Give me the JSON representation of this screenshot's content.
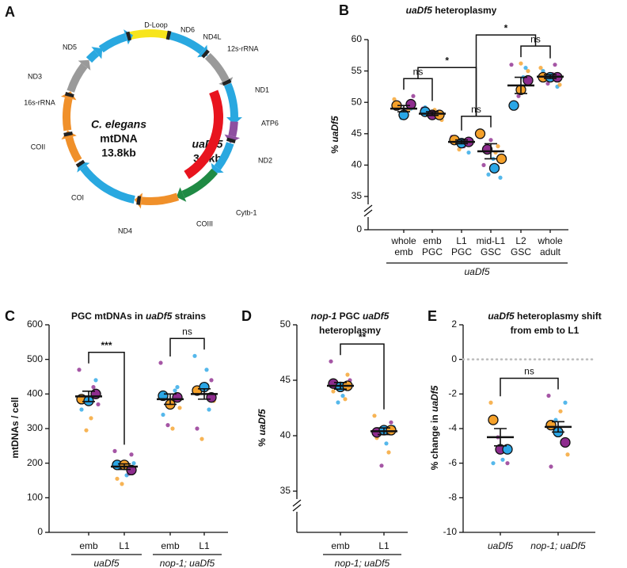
{
  "diagram": {
    "panel_label": "A",
    "genes": [
      "D-Loop",
      "ND6",
      "ND4L",
      "12s-rRNA",
      "ND1",
      "ATP6",
      "ND2",
      "Cytb-1",
      "COIII",
      "ND4",
      "COI",
      "COII",
      "16s-rRNA",
      "ND3",
      "ND5"
    ],
    "center_label": [
      "C. elegans",
      "mtDNA",
      "13.8kb"
    ],
    "deletion_label": [
      "uaDf5",
      "3.1kb"
    ]
  },
  "chart_data": [
    {
      "type": "dot",
      "panel_label": "B",
      "title": [
        [
          {
            "text": "uaDf5",
            "italic": true
          },
          {
            "text": " heteroplasmy"
          }
        ]
      ],
      "ylabel": [
        "% ",
        {
          "text": "uaDf5",
          "italic": true
        }
      ],
      "ylim": [
        0,
        60
      ],
      "yticks": [
        0,
        35,
        40,
        45,
        50,
        55,
        60
      ],
      "axis_break": [
        0,
        35
      ],
      "categories": [
        [
          "whole",
          "emb"
        ],
        [
          "emb",
          "PGC"
        ],
        [
          "L1",
          "PGC"
        ],
        [
          "mid-L1",
          "GSC"
        ],
        [
          "L2",
          "GSC"
        ],
        [
          "whole",
          "adult"
        ]
      ],
      "groups": [
        {
          "label": "uaDf5",
          "italic": true,
          "categories": [
            0,
            5
          ]
        }
      ],
      "replicate_colors": [
        "#f5a12a",
        "#2aa6e6",
        "#8e2c8e"
      ],
      "data": [
        {
          "big": [
            49.5,
            48,
            49.7
          ],
          "big_color": [
            0,
            1,
            2
          ],
          "small": [
            50.5,
            49,
            48.5,
            47.5,
            50,
            51,
            48.8
          ],
          "small_color": [
            0,
            1,
            2,
            1,
            0,
            2,
            0
          ],
          "mean": 49,
          "sem": 0.5
        },
        {
          "big": [
            48.5,
            48,
            48
          ],
          "big_color": [
            1,
            2,
            0
          ],
          "small": [
            49,
            47.5,
            48.8,
            47.8,
            49.2,
            47.2
          ],
          "small_color": [
            2,
            1,
            0,
            2,
            1,
            0
          ],
          "mean": 48.2,
          "sem": 0.3
        },
        {
          "big": [
            44,
            43.5,
            43.7
          ],
          "big_color": [
            0,
            1,
            2
          ],
          "small": [
            44.5,
            42,
            43,
            42.5,
            44.2
          ],
          "small_color": [
            2,
            1,
            2,
            0,
            0
          ],
          "mean": 43.7,
          "sem": 0.3
        },
        {
          "big": [
            45,
            42.5,
            39.5,
            41
          ],
          "big_color": [
            0,
            2,
            1,
            0
          ],
          "small": [
            44.5,
            43,
            41,
            38.5,
            40,
            38,
            42,
            44
          ],
          "small_color": [
            2,
            0,
            1,
            1,
            2,
            1,
            0,
            2
          ],
          "mean": 42.2,
          "sem": 1.2
        },
        {
          "big": [
            49.5,
            52,
            53.5
          ],
          "big_color": [
            1,
            0,
            2
          ],
          "small": [
            56,
            55,
            54,
            51,
            50,
            53.5,
            55.5,
            56.2
          ],
          "small_color": [
            2,
            0,
            1,
            2,
            1,
            0,
            1,
            0
          ],
          "mean": 52.7,
          "sem": 1.3
        },
        {
          "big": [
            54,
            54,
            54
          ],
          "big_color": [
            0,
            1,
            2
          ],
          "small": [
            55.5,
            52.5,
            54.5,
            53,
            55,
            52.8,
            56
          ],
          "small_color": [
            0,
            1,
            2,
            2,
            1,
            0,
            2
          ],
          "mean": 54.1,
          "sem": 0.3
        }
      ],
      "annotations": [
        {
          "a": [
            0
          ],
          "b": [
            1
          ],
          "label": "ns"
        },
        {
          "a": [
            2
          ],
          "b": [
            3
          ],
          "label": "ns"
        },
        {
          "a": [
            4
          ],
          "b": [
            5
          ],
          "label": "ns"
        },
        {
          "a": [
            0,
            1
          ],
          "b": [
            2,
            3
          ],
          "label": "*"
        },
        {
          "a": [
            2,
            3
          ],
          "b": [
            4,
            5
          ],
          "label": "*"
        }
      ]
    },
    {
      "type": "dot",
      "panel_label": "C",
      "title": [
        [
          {
            "text": "PGC mtDNAs in "
          },
          {
            "text": "uaDf5",
            "italic": true
          },
          {
            "text": " strains"
          }
        ]
      ],
      "ylabel": [
        "mtDNAs / cell"
      ],
      "ylim": [
        0,
        600
      ],
      "yticks": [
        0,
        100,
        200,
        300,
        400,
        500,
        600
      ],
      "categories": [
        [
          "emb"
        ],
        [
          "L1"
        ],
        [
          "emb"
        ],
        [
          "L1"
        ]
      ],
      "groups": [
        {
          "label": "uaDf5",
          "italic": true,
          "categories": [
            0,
            1
          ]
        },
        {
          "label": "nop-1; uaDf5",
          "italic": true,
          "categories": [
            2,
            3
          ]
        }
      ],
      "replicate_colors": [
        "#f5a12a",
        "#2aa6e6",
        "#8e2c8e"
      ],
      "data": [
        {
          "big": [
            385,
            380,
            400
          ],
          "big_color": [
            0,
            1,
            2
          ],
          "small": [
            470,
            440,
            330,
            295,
            355,
            370,
            420
          ],
          "small_color": [
            2,
            1,
            0,
            0,
            1,
            2,
            2
          ],
          "mean": 393,
          "sem": 15
        },
        {
          "big": [
            195,
            195,
            180
          ],
          "big_color": [
            1,
            0,
            2
          ],
          "small": [
            235,
            225,
            165,
            140,
            155,
            200,
            170
          ],
          "small_color": [
            2,
            2,
            1,
            0,
            0,
            1,
            2
          ],
          "mean": 190,
          "sem": 8
        },
        {
          "big": [
            395,
            370,
            390
          ],
          "big_color": [
            1,
            0,
            2
          ],
          "small": [
            490,
            420,
            300,
            310,
            340,
            360,
            410
          ],
          "small_color": [
            2,
            1,
            0,
            2,
            1,
            0,
            1
          ],
          "mean": 385,
          "sem": 15
        },
        {
          "big": [
            410,
            420,
            390
          ],
          "big_color": [
            0,
            1,
            2
          ],
          "small": [
            510,
            440,
            470,
            270,
            300,
            380,
            355
          ],
          "small_color": [
            1,
            2,
            1,
            0,
            2,
            0,
            1
          ],
          "mean": 400,
          "sem": 15
        }
      ],
      "annotations": [
        {
          "a": [
            0
          ],
          "b": [
            1
          ],
          "label": "***"
        },
        {
          "a": [
            2
          ],
          "b": [
            3
          ],
          "label": "ns"
        }
      ]
    },
    {
      "type": "dot",
      "panel_label": "D",
      "title": [
        [
          {
            "text": "nop-1",
            "italic": true
          },
          {
            "text": " PGC "
          },
          {
            "text": "uaDf5",
            "italic": true
          }
        ],
        [
          {
            "text": "heteroplasmy"
          }
        ]
      ],
      "ylabel": [
        "% ",
        {
          "text": "uaDf5",
          "italic": true
        }
      ],
      "ylim": [
        0,
        50
      ],
      "yticks": [
        35,
        40,
        45,
        50
      ],
      "axis_break": [
        0,
        35
      ],
      "categories": [
        [
          "emb"
        ],
        [
          "L1"
        ]
      ],
      "groups": [
        {
          "label": "nop-1; uaDf5",
          "italic": true,
          "categories": [
            0,
            1
          ]
        }
      ],
      "replicate_colors": [
        "#f5a12a",
        "#2aa6e6",
        "#8e2c8e"
      ],
      "data": [
        {
          "big": [
            44.7,
            44.4,
            44.5
          ],
          "big_color": [
            2,
            1,
            0
          ],
          "small": [
            46.7,
            45.5,
            43.6,
            43,
            44,
            45,
            43.3
          ],
          "small_color": [
            2,
            0,
            1,
            1,
            0,
            2,
            0
          ],
          "mean": 44.5,
          "sem": 0.3
        },
        {
          "big": [
            40.3,
            40.5,
            40.5
          ],
          "big_color": [
            2,
            1,
            0
          ],
          "small": [
            41.8,
            41.2,
            39.3,
            37.3,
            39.8,
            40.8,
            38.5
          ],
          "small_color": [
            0,
            2,
            1,
            2,
            0,
            1,
            0
          ],
          "mean": 40.4,
          "sem": 0.3
        }
      ],
      "annotations": [
        {
          "a": [
            0
          ],
          "b": [
            1
          ],
          "label": "**"
        }
      ]
    },
    {
      "type": "dot",
      "panel_label": "E",
      "title": [
        [
          {
            "text": "uaDf5",
            "italic": true
          },
          {
            "text": " heteroplasmy shift"
          }
        ],
        [
          {
            "text": "from emb to L1"
          }
        ]
      ],
      "ylabel": [
        {
          "text": "% change in "
        },
        {
          "text": "uaDf5",
          "italic": true
        }
      ],
      "ylim": [
        -10,
        2
      ],
      "yticks": [
        -10,
        -8,
        -6,
        -4,
        -2,
        0,
        2
      ],
      "reference_line": 0,
      "categories": [
        [
          "uaDf5"
        ],
        [
          "nop-1; uaDf5"
        ]
      ],
      "category_italic": true,
      "replicate_colors": [
        "#f5a12a",
        "#2aa6e6",
        "#8e2c8e"
      ],
      "data": [
        {
          "big": [
            -3.5,
            -5.2,
            -5.2
          ],
          "big_color": [
            0,
            2,
            1
          ],
          "small": [
            -2.5,
            -6,
            -5.8,
            -4.5,
            -6
          ],
          "small_color": [
            0,
            2,
            1,
            2,
            1
          ],
          "mean": -4.5,
          "sem": 0.5
        },
        {
          "big": [
            -3.8,
            -4.2,
            -4.8
          ],
          "big_color": [
            0,
            1,
            2
          ],
          "small": [
            -2.1,
            -2.5,
            -3,
            -3.5,
            -6.2,
            -5.5
          ],
          "small_color": [
            2,
            1,
            0,
            1,
            2,
            0
          ],
          "mean": -3.9,
          "sem": 0.3
        }
      ],
      "annotations": [
        {
          "a": [
            0
          ],
          "b": [
            1
          ],
          "label": "ns"
        }
      ]
    }
  ]
}
